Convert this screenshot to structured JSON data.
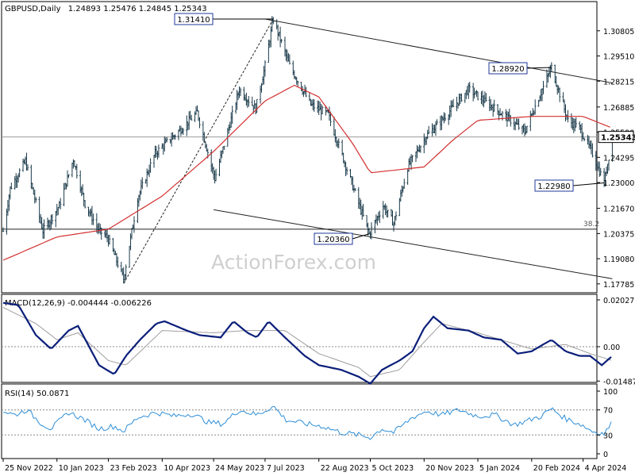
{
  "header": {
    "title": "GBPUSD,Daily",
    "ohlc": "1.24893 1.25476 1.24845 1.25343"
  },
  "watermark": "ActionForex.com",
  "colors": {
    "price": "#1a3a4a",
    "ma": "#d32f2f",
    "macd": "#0b1f7a",
    "signal": "#9e9e9e",
    "rsi": "#2f8fd8",
    "line": "#222222",
    "axis": "#000000",
    "dotted": "#c8c8c8"
  },
  "chart_data": [
    {
      "type": "line",
      "title": "GBPUSD,Daily",
      "x_labels": [
        "25 Nov 2022",
        "10 Jan 2023",
        "23 Feb 2023",
        "10 Apr 2023",
        "24 May 2023",
        "7 Jul 2023",
        "22 Aug 2023",
        "5 Oct 2023",
        "20 Nov 2023",
        "5 Jan 2024",
        "20 Feb 2024",
        "4 Apr 2024"
      ],
      "yticks": [
        "1.30805",
        "1.29510",
        "1.28215",
        "1.26885",
        "1.25590",
        "1.24295",
        "1.23000",
        "1.21670",
        "1.20375",
        "1.19080",
        "1.17785"
      ],
      "ylim": [
        1.174,
        1.3189
      ],
      "price_path": [
        [
          "25 Nov 2022",
          1.205
        ],
        [
          "1 Dec 2022",
          1.227
        ],
        [
          "14 Dec 2022",
          1.241
        ],
        [
          "29 Dec 2022",
          1.205
        ],
        [
          "12 Jan 2023",
          1.218
        ],
        [
          "24 Jan 2023",
          1.242
        ],
        [
          "3 Feb 2023",
          1.219
        ],
        [
          "15 Feb 2023",
          1.205
        ],
        [
          "22 Feb 2023",
          1.202
        ],
        [
          "8 Mar 2023",
          1.1805
        ],
        [
          "20 Mar 2023",
          1.222
        ],
        [
          "4 Apr 2023",
          1.245
        ],
        [
          "27 Apr 2023",
          1.258
        ],
        [
          "10 May 2023",
          1.266
        ],
        [
          "25 May 2023",
          1.232
        ],
        [
          "15 Jun 2023",
          1.278
        ],
        [
          "29 Jun 2023",
          1.268
        ],
        [
          "7 Jul 2023",
          1.29
        ],
        [
          "14 Jul 2023",
          1.3141
        ],
        [
          "28 Jul 2023",
          1.29
        ],
        [
          "15 Aug 2023",
          1.27
        ],
        [
          "30 Aug 2023",
          1.265
        ],
        [
          "20 Sep 2023",
          1.228
        ],
        [
          "4 Oct 2023",
          1.2036
        ],
        [
          "16 Oct 2023",
          1.218
        ],
        [
          "25 Oct 2023",
          1.209
        ],
        [
          "6 Nov 2023",
          1.238
        ],
        [
          "22 Nov 2023",
          1.254
        ],
        [
          "5 Dec 2023",
          1.262
        ],
        [
          "28 Dec 2023",
          1.278
        ],
        [
          "15 Jan 2024",
          1.27
        ],
        [
          "2 Feb 2024",
          1.262
        ],
        [
          "14 Feb 2024",
          1.256
        ],
        [
          "20 Feb 2024",
          1.265
        ],
        [
          "8 Mar 2024",
          1.2892
        ],
        [
          "22 Mar 2024",
          1.262
        ],
        [
          "1 Apr 2024",
          1.258
        ],
        [
          "12 Apr 2024",
          1.245
        ],
        [
          "22 Apr 2024",
          1.2298
        ],
        [
          "29 Apr 2024",
          1.2534
        ]
      ],
      "ma_series": [
        [
          "25 Nov 2022",
          1.19
        ],
        [
          "10 Jan 2023",
          1.202
        ],
        [
          "23 Feb 2023",
          1.206
        ],
        [
          "10 Apr 2023",
          1.223
        ],
        [
          "24 May 2023",
          1.246
        ],
        [
          "7 Jul 2023",
          1.272
        ],
        [
          "1 Aug 2023",
          1.28
        ],
        [
          "22 Aug 2023",
          1.274
        ],
        [
          "20 Sep 2023",
          1.25
        ],
        [
          "5 Oct 2023",
          1.235
        ],
        [
          "20 Nov 2023",
          1.238
        ],
        [
          "15 Dec 2023",
          1.252
        ],
        [
          "5 Jan 2024",
          1.262
        ],
        [
          "20 Feb 2024",
          1.264
        ],
        [
          "4 Apr 2024",
          1.264
        ],
        [
          "29 Apr 2024",
          1.258
        ]
      ],
      "annotations": [
        {
          "text": "1.31410",
          "date": "14 Jul 2023",
          "value": 1.3141
        },
        {
          "text": "1.28920",
          "date": "8 Mar 2024",
          "value": 1.2892
        },
        {
          "text": "1.20360",
          "date": "4 Oct 2023",
          "value": 1.2036
        },
        {
          "text": "1.22980",
          "date": "22 Apr 2024",
          "value": 1.2298
        }
      ],
      "fib_label": "38.2",
      "fib_level": 1.206,
      "last_price": "1.25343",
      "last_value": 1.25343,
      "trendline_upper": [
        [
          "7 Jul 2023",
          1.3141
        ],
        [
          "29 Apr 2024",
          1.2812
        ]
      ],
      "trendline_lower": [
        [
          "24 May 2023",
          1.216
        ],
        [
          "29 Apr 2024",
          1.1805
        ]
      ],
      "trendline_dotted": [
        [
          "8 Mar 2023",
          1.178
        ],
        [
          "14 Jul 2023",
          1.3141
        ]
      ]
    },
    {
      "type": "line",
      "title": "MACD(12,26,9) -0.004444 -0.006226",
      "yticks": [
        "0.02027",
        "0.00",
        "-0.014877"
      ],
      "ylim": [
        -0.0166,
        0.0216
      ],
      "zero_line": 0.0,
      "macd": [
        [
          "25 Nov 2022",
          0.019
        ],
        [
          "8 Dec 2022",
          0.018
        ],
        [
          "23 Dec 2022",
          0.005
        ],
        [
          "5 Jan 2023",
          -0.001
        ],
        [
          "20 Jan 2023",
          0.007
        ],
        [
          "28 Jan 2023",
          0.009
        ],
        [
          "15 Feb 2023",
          -0.008
        ],
        [
          "28 Feb 2023",
          -0.012
        ],
        [
          "10 Mar 2023",
          -0.004
        ],
        [
          "22 Mar 2023",
          0.003
        ],
        [
          "5 Apr 2023",
          0.01
        ],
        [
          "12 Apr 2023",
          0.011
        ],
        [
          "1 May 2023",
          0.007
        ],
        [
          "12 May 2023",
          0.005
        ],
        [
          "30 May 2023",
          0.004
        ],
        [
          "10 Jun 2023",
          0.011
        ],
        [
          "22 Jun 2023",
          0.006
        ],
        [
          "30 Jun 2023",
          0.004
        ],
        [
          "10 Jul 2023",
          0.011
        ],
        [
          "24 Jul 2023",
          0.004
        ],
        [
          "10 Aug 2023",
          -0.004
        ],
        [
          "22 Aug 2023",
          -0.008
        ],
        [
          "10 Sep 2023",
          -0.01
        ],
        [
          "25 Sep 2023",
          -0.013
        ],
        [
          "5 Oct 2023",
          -0.016
        ],
        [
          "15 Oct 2023",
          -0.01
        ],
        [
          "30 Oct 2023",
          -0.006
        ],
        [
          "10 Nov 2023",
          -0.002
        ],
        [
          "20 Nov 2023",
          0.008
        ],
        [
          "28 Nov 2023",
          0.013
        ],
        [
          "10 Dec 2023",
          0.008
        ],
        [
          "28 Dec 2023",
          0.007
        ],
        [
          "10 Jan 2024",
          0.004
        ],
        [
          "25 Jan 2024",
          0.003
        ],
        [
          "8 Feb 2024",
          -0.003
        ],
        [
          "20 Feb 2024",
          -0.002
        ],
        [
          "1 Mar 2024",
          0.001
        ],
        [
          "8 Mar 2024",
          0.003
        ],
        [
          "20 Mar 2024",
          -0.002
        ],
        [
          "1 Apr 2024",
          -0.004
        ],
        [
          "10 Apr 2024",
          -0.004
        ],
        [
          "20 Apr 2024",
          -0.008
        ],
        [
          "29 Apr 2024",
          -0.004
        ]
      ],
      "signal": [
        [
          "25 Nov 2022",
          0.017
        ],
        [
          "23 Dec 2022",
          0.01
        ],
        [
          "10 Jan 2023",
          0.003
        ],
        [
          "28 Jan 2023",
          0.006
        ],
        [
          "23 Feb 2023",
          -0.006
        ],
        [
          "10 Mar 2023",
          -0.008
        ],
        [
          "10 Apr 2023",
          0.007
        ],
        [
          "24 May 2023",
          0.006
        ],
        [
          "20 Jun 2023",
          0.007
        ],
        [
          "24 Jul 2023",
          0.007
        ],
        [
          "22 Aug 2023",
          -0.003
        ],
        [
          "25 Sep 2023",
          -0.009
        ],
        [
          "5 Oct 2023",
          -0.013
        ],
        [
          "30 Oct 2023",
          -0.01
        ],
        [
          "20 Nov 2023",
          0.002
        ],
        [
          "5 Dec 2023",
          0.01
        ],
        [
          "5 Jan 2024",
          0.006
        ],
        [
          "20 Feb 2024",
          -0.001
        ],
        [
          "20 Mar 2024",
          0.001
        ],
        [
          "10 Apr 2024",
          -0.003
        ],
        [
          "29 Apr 2024",
          -0.006
        ]
      ]
    },
    {
      "type": "line",
      "title": "RSI(14) 50.0871",
      "yticks": [
        "100",
        "70",
        "30",
        "0"
      ],
      "ylim": [
        0,
        100
      ],
      "dotted_levels": [
        70,
        30
      ],
      "rsi": [
        [
          "25 Nov 2022",
          68
        ],
        [
          "5 Dec 2022",
          62
        ],
        [
          "15 Dec 2022",
          70
        ],
        [
          "28 Dec 2022",
          48
        ],
        [
          "5 Jan 2023",
          40
        ],
        [
          "20 Jan 2023",
          66
        ],
        [
          "1 Feb 2023",
          56
        ],
        [
          "15 Feb 2023",
          40
        ],
        [
          "28 Feb 2023",
          44
        ],
        [
          "8 Mar 2023",
          36
        ],
        [
          "20 Mar 2023",
          58
        ],
        [
          "5 Apr 2023",
          66
        ],
        [
          "20 Apr 2023",
          60
        ],
        [
          "5 May 2023",
          64
        ],
        [
          "20 May 2023",
          50
        ],
        [
          "1 Jun 2023",
          48
        ],
        [
          "15 Jun 2023",
          70
        ],
        [
          "30 Jun 2023",
          62
        ],
        [
          "14 Jul 2023",
          76
        ],
        [
          "25 Jul 2023",
          54
        ],
        [
          "10 Aug 2023",
          48
        ],
        [
          "25 Aug 2023",
          44
        ],
        [
          "10 Sep 2023",
          34
        ],
        [
          "25 Sep 2023",
          30
        ],
        [
          "5 Oct 2023",
          26
        ],
        [
          "15 Oct 2023",
          40
        ],
        [
          "25 Oct 2023",
          34
        ],
        [
          "10 Nov 2023",
          58
        ],
        [
          "22 Nov 2023",
          68
        ],
        [
          "5 Dec 2023",
          62
        ],
        [
          "20 Dec 2023",
          70
        ],
        [
          "5 Jan 2024",
          60
        ],
        [
          "20 Jan 2024",
          62
        ],
        [
          "5 Feb 2024",
          46
        ],
        [
          "15 Feb 2024",
          52
        ],
        [
          "28 Feb 2024",
          60
        ],
        [
          "8 Mar 2024",
          72
        ],
        [
          "20 Mar 2024",
          56
        ],
        [
          "1 Apr 2024",
          48
        ],
        [
          "12 Apr 2024",
          36
        ],
        [
          "22 Apr 2024",
          32
        ],
        [
          "29 Apr 2024",
          50
        ]
      ]
    }
  ]
}
